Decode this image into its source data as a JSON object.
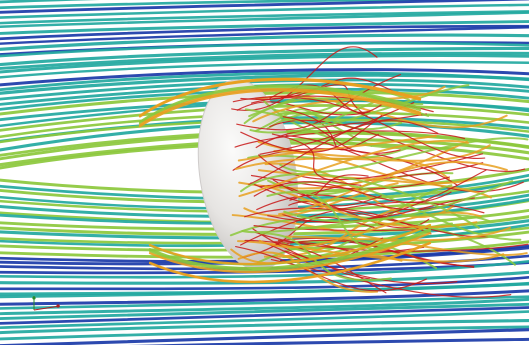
{
  "scene": {
    "background": "#ffffff",
    "body": {
      "shape": "ellipsoid",
      "color": "#e8e6e4"
    },
    "flow_direction": "left-to-right",
    "colormap": {
      "slow": "#c81818",
      "mid_low": "#e8a020",
      "mid": "#8cc83c",
      "mid_high": "#22a8a0",
      "fast": "#1a3aa8"
    },
    "features": [
      "streamlines",
      "wake-region",
      "orientation-axes"
    ]
  }
}
